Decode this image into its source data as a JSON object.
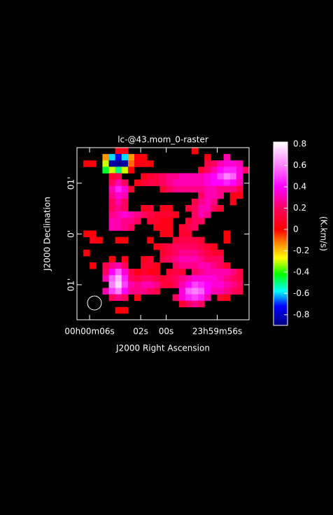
{
  "chart_data": {
    "type": "raster",
    "title": "lc-@43.mom_0-raster",
    "x_label": "J2000 Right Ascension",
    "y_label": "J2000 Declination",
    "colorbar_label": "(K.km/s)",
    "xlim": [
      6.99,
      -6.49
    ],
    "ylim": [
      -1.69,
      1.7
    ],
    "xticks": [
      {
        "value": 6,
        "label": "00h00m06s"
      },
      {
        "value": 2,
        "label": "02s"
      },
      {
        "value": 0,
        "label": "00s"
      },
      {
        "value": -4,
        "label": "23h59m56s"
      }
    ],
    "yticks": [
      {
        "value": 1,
        "label": "01'"
      },
      {
        "value": 0,
        "label": "0'"
      },
      {
        "value": -1,
        "label": "01'"
      }
    ],
    "clim": [
      -0.9,
      0.82
    ],
    "cticks": [
      0.8,
      0.6,
      0.4,
      0.2,
      0,
      -0.2,
      -0.4,
      -0.6,
      -0.8
    ],
    "colorscale": [
      [
        -0.9,
        "#000080"
      ],
      [
        -0.72,
        "#0000ff"
      ],
      [
        -0.58,
        "#00ffff"
      ],
      [
        -0.42,
        "#00ff00"
      ],
      [
        -0.27,
        "#ffff00"
      ],
      [
        -0.12,
        "#ff8000"
      ],
      [
        0,
        "#ff0000"
      ],
      [
        0.2,
        "#ff0060"
      ],
      [
        0.4,
        "#ff00ff"
      ],
      [
        0.6,
        "#ff80ff"
      ],
      [
        0.82,
        "#ffffff"
      ]
    ],
    "z": [
      [
        null,
        null,
        null,
        null,
        null,
        null,
        0.05,
        0.05,
        null,
        null,
        null,
        null,
        null,
        null,
        null,
        null,
        null,
        null,
        0.02,
        null,
        null,
        null,
        null,
        null,
        null,
        null,
        null
      ],
      [
        null,
        null,
        null,
        null,
        -0.15,
        -0.6,
        -0.75,
        -0.6,
        -0.15,
        0.02,
        0.02,
        null,
        null,
        null,
        null,
        null,
        null,
        null,
        null,
        null,
        0.05,
        null,
        null,
        0.3,
        null,
        null,
        null
      ],
      [
        null,
        0.02,
        0.02,
        null,
        -0.3,
        -0.85,
        -0.88,
        -0.85,
        -0.1,
        0.03,
        0.05,
        0.02,
        null,
        null,
        null,
        null,
        null,
        null,
        null,
        null,
        0.15,
        0.2,
        0.3,
        0.35,
        0.35,
        0.3,
        null
      ],
      [
        null,
        null,
        null,
        null,
        -0.45,
        -0.3,
        -0.5,
        -0.3,
        0.02,
        null,
        null,
        null,
        null,
        null,
        null,
        null,
        null,
        null,
        null,
        0.1,
        0.2,
        0.3,
        0.4,
        0.45,
        0.45,
        0.35,
        0.2
      ],
      [
        null,
        null,
        null,
        null,
        null,
        0.1,
        0.15,
        null,
        null,
        null,
        0.05,
        0.1,
        0.15,
        0.2,
        0.25,
        0.25,
        0.3,
        0.3,
        0.3,
        0.3,
        0.35,
        0.4,
        0.5,
        0.6,
        0.55,
        0.35,
        null
      ],
      [
        null,
        null,
        null,
        null,
        null,
        0.2,
        0.3,
        0.2,
        null,
        0.05,
        0.1,
        0.15,
        0.15,
        0.2,
        0.25,
        0.3,
        0.3,
        0.3,
        0.3,
        0.3,
        0.35,
        0.4,
        0.4,
        0.45,
        0.4,
        0.3,
        null
      ],
      [
        null,
        null,
        null,
        null,
        null,
        0.3,
        0.45,
        0.35,
        0.1,
        null,
        null,
        null,
        null,
        0.1,
        0.2,
        0.25,
        0.25,
        0.25,
        0.25,
        0.25,
        0.3,
        0.3,
        0.25,
        0.25,
        0.25,
        0.15,
        null
      ],
      [
        null,
        null,
        null,
        null,
        null,
        0.25,
        0.35,
        0.3,
        null,
        null,
        null,
        null,
        null,
        null,
        null,
        null,
        null,
        null,
        null,
        0.2,
        0.3,
        0.3,
        0.25,
        null,
        0.05,
        0.05,
        null
      ],
      [
        null,
        null,
        null,
        null,
        null,
        0.2,
        0.3,
        0.2,
        null,
        null,
        null,
        null,
        null,
        null,
        null,
        null,
        null,
        null,
        0.15,
        0.25,
        0.3,
        0.25,
        null,
        null,
        0.05,
        null,
        null
      ],
      [
        null,
        null,
        null,
        null,
        null,
        0.2,
        0.25,
        0.2,
        null,
        null,
        0.05,
        0.1,
        null,
        0.05,
        0.05,
        null,
        null,
        0.1,
        0.2,
        0.3,
        0.3,
        0.2,
        0.1,
        null,
        null,
        null,
        null
      ],
      [
        null,
        null,
        null,
        null,
        null,
        0.25,
        0.3,
        0.35,
        0.3,
        0.25,
        0.2,
        0.15,
        0.1,
        0.1,
        0.1,
        0.05,
        null,
        null,
        0.2,
        0.3,
        0.25,
        null,
        null,
        null,
        null,
        null,
        null
      ],
      [
        null,
        null,
        null,
        null,
        null,
        0.3,
        0.3,
        0.25,
        0.25,
        0.2,
        null,
        0.1,
        0.1,
        0.05,
        0.05,
        null,
        null,
        0.1,
        0.2,
        0.2,
        null,
        null,
        null,
        null,
        null,
        null,
        null
      ],
      [
        null,
        null,
        null,
        null,
        null,
        0.3,
        0.3,
        0.25,
        0.2,
        null,
        null,
        null,
        0.05,
        0.05,
        0.05,
        null,
        0.1,
        0.15,
        0.2,
        null,
        null,
        null,
        null,
        null,
        null,
        null,
        null
      ],
      [
        null,
        0.02,
        0.02,
        null,
        null,
        null,
        null,
        null,
        null,
        null,
        null,
        null,
        null,
        0.05,
        0.05,
        null,
        0.1,
        0.1,
        null,
        null,
        null,
        null,
        null,
        0.02,
        null,
        null,
        null
      ],
      [
        null,
        null,
        0.05,
        0.02,
        null,
        null,
        0.02,
        0.02,
        null,
        null,
        null,
        0.02,
        null,
        null,
        null,
        0.1,
        0.15,
        0.15,
        0.15,
        0.1,
        null,
        null,
        null,
        0.02,
        null,
        null,
        null
      ],
      [
        null,
        null,
        null,
        null,
        null,
        null,
        null,
        null,
        null,
        null,
        null,
        null,
        0.05,
        0.1,
        0.15,
        0.2,
        0.2,
        0.2,
        0.2,
        0.15,
        0.1,
        0.05,
        null,
        null,
        null,
        null,
        null
      ],
      [
        null,
        0.02,
        null,
        null,
        null,
        null,
        null,
        null,
        null,
        null,
        null,
        null,
        null,
        0.1,
        0.15,
        0.2,
        0.25,
        0.25,
        0.25,
        0.2,
        0.15,
        0.1,
        0.1,
        null,
        null,
        null,
        null
      ],
      [
        null,
        null,
        null,
        null,
        null,
        0.02,
        null,
        0.05,
        null,
        null,
        0.05,
        0.1,
        null,
        0.15,
        0.2,
        0.25,
        0.3,
        0.3,
        0.3,
        0.25,
        0.2,
        0.2,
        0.2,
        null,
        null,
        null,
        null
      ],
      [
        null,
        null,
        0.02,
        null,
        0.15,
        0.25,
        0.3,
        0.2,
        null,
        null,
        0.1,
        0.1,
        0.05,
        null,
        null,
        0.2,
        0.25,
        0.25,
        0.25,
        0.3,
        0.3,
        0.25,
        0.2,
        0.1,
        null,
        null,
        null
      ],
      [
        null,
        null,
        null,
        null,
        0.2,
        0.4,
        0.55,
        0.35,
        0.15,
        0.05,
        0.1,
        0.05,
        0.05,
        null,
        0.1,
        0.15,
        0.1,
        null,
        0.2,
        0.25,
        0.3,
        0.3,
        0.3,
        0.3,
        0.25,
        0.15,
        null
      ],
      [
        null,
        null,
        null,
        null,
        0.3,
        0.55,
        0.7,
        0.45,
        0.2,
        0.15,
        0.2,
        0.2,
        0.15,
        0.1,
        0.15,
        0.2,
        0.25,
        0.3,
        0.35,
        0.35,
        0.35,
        0.35,
        0.3,
        0.25,
        0.2,
        0.15,
        null
      ],
      [
        null,
        null,
        null,
        null,
        null,
        0.6,
        0.75,
        0.5,
        0.3,
        0.25,
        0.3,
        0.3,
        0.25,
        0.15,
        0.1,
        0.2,
        0.3,
        0.4,
        0.5,
        0.45,
        0.4,
        0.35,
        0.35,
        0.3,
        0.25,
        0.2,
        null
      ],
      [
        null,
        null,
        null,
        null,
        0.3,
        0.5,
        0.6,
        0.4,
        0.25,
        0.25,
        0.25,
        0.2,
        0.15,
        null,
        null,
        null,
        0.35,
        0.55,
        0.6,
        0.55,
        0.4,
        0.3,
        0.3,
        0.25,
        0.2,
        0.15,
        null
      ],
      [
        null,
        null,
        null,
        null,
        null,
        0.2,
        0.25,
        0.2,
        null,
        0.05,
        null,
        null,
        null,
        null,
        null,
        0.2,
        0.35,
        0.45,
        0.5,
        0.45,
        0.3,
        null,
        0.1,
        0.05,
        null,
        null,
        null
      ],
      [
        null,
        null,
        null,
        null,
        null,
        null,
        null,
        null,
        null,
        null,
        null,
        null,
        null,
        null,
        null,
        null,
        0.1,
        0.2,
        0.25,
        0.2,
        null,
        null,
        null,
        null,
        null,
        null,
        null
      ],
      [
        null,
        null,
        null,
        null,
        null,
        null,
        0.02,
        0.02,
        null,
        null,
        null,
        null,
        null,
        null,
        null,
        null,
        null,
        null,
        null,
        null,
        null,
        null,
        null,
        null,
        null,
        null,
        null
      ],
      [
        null,
        null,
        null,
        null,
        null,
        null,
        null,
        null,
        null,
        null,
        null,
        null,
        null,
        null,
        null,
        null,
        null,
        null,
        null,
        null,
        null,
        null,
        null,
        null,
        null,
        null,
        null
      ]
    ]
  }
}
